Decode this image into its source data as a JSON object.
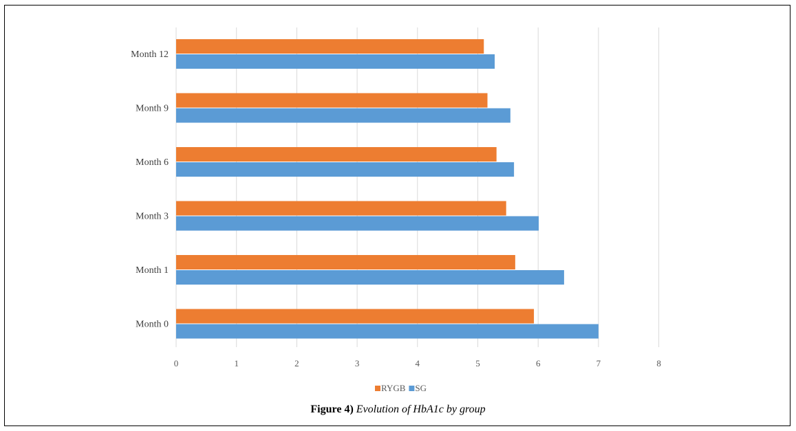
{
  "chart_data": {
    "type": "bar",
    "orientation": "horizontal",
    "categories": [
      "Month 0",
      "Month 1",
      "Month 3",
      "Month 6",
      "Month 9",
      "Month 12"
    ],
    "series": [
      {
        "name": "RYGB",
        "color": "#ED7D31",
        "values": [
          5.93,
          5.62,
          5.47,
          5.31,
          5.16,
          5.1
        ]
      },
      {
        "name": "SG",
        "color": "#5B9BD5",
        "values": [
          7.0,
          6.43,
          6.01,
          5.6,
          5.54,
          5.28
        ]
      }
    ],
    "xlim": [
      0,
      8
    ],
    "xticks": [
      "0",
      "1",
      "2",
      "3",
      "4",
      "5",
      "6",
      "7",
      "8"
    ],
    "grid": true,
    "legend_position": "bottom"
  },
  "caption": {
    "label": "Figure 4)",
    "text": "Evolution of HbA1c by group"
  }
}
